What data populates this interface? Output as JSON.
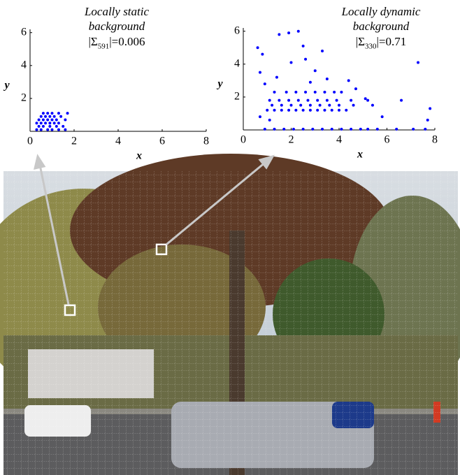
{
  "chart_data": [
    {
      "type": "scatter",
      "title": "Locally static background",
      "annotation": [
        "|Σ",
        "591",
        "|=0.006"
      ],
      "x_label": "x",
      "y_label": "y",
      "xlim": [
        0,
        8
      ],
      "ylim": [
        0,
        6.2
      ],
      "xticks": [
        0,
        2,
        4,
        6,
        8
      ],
      "yticks": [
        2,
        4,
        6
      ],
      "series": [
        {
          "color": "#0000ff",
          "x": [
            0.3,
            0.5,
            0.8,
            1.0,
            1.3,
            1.6,
            0.4,
            0.6,
            0.9,
            1.2,
            1.5,
            0.3,
            0.5,
            0.7,
            0.9,
            1.1,
            1.3,
            0.4,
            0.6,
            0.8,
            1.0,
            1.2,
            1.6,
            0.5,
            0.7,
            0.9,
            1.1,
            1.4,
            0.6,
            0.8,
            1.0,
            1.3,
            1.7
          ],
          "values": [
            0.1,
            0.1,
            0.1,
            0.1,
            0.1,
            0.1,
            0.3,
            0.3,
            0.3,
            0.3,
            0.3,
            0.5,
            0.5,
            0.5,
            0.5,
            0.5,
            0.5,
            0.7,
            0.7,
            0.7,
            0.7,
            0.7,
            0.7,
            0.9,
            0.9,
            0.9,
            0.9,
            0.9,
            1.1,
            1.1,
            1.1,
            1.1,
            1.1
          ]
        }
      ]
    },
    {
      "type": "scatter",
      "title": "Locally dynamic background",
      "annotation": [
        "|Σ",
        "330",
        "|=0.71"
      ],
      "x_label": "x",
      "y_label": "y",
      "xlim": [
        0,
        8
      ],
      "ylim": [
        0,
        6.2
      ],
      "xticks": [
        0,
        2,
        4,
        6,
        8
      ],
      "yticks": [
        2,
        4,
        6
      ],
      "series": [
        {
          "color": "#0000ff",
          "x": [
            0.9,
            1.3,
            1.7,
            2.1,
            2.5,
            2.9,
            3.3,
            3.7,
            4.1,
            4.5,
            4.9,
            5.2,
            5.6,
            6.4,
            7.1,
            7.6,
            1.0,
            1.3,
            1.6,
            1.9,
            2.2,
            2.5,
            2.8,
            3.1,
            3.4,
            3.7,
            4.0,
            4.3,
            1.2,
            1.6,
            2.0,
            2.4,
            2.8,
            3.2,
            3.6,
            4.0,
            4.6,
            1.1,
            1.5,
            1.9,
            2.3,
            2.7,
            3.1,
            3.5,
            3.9,
            4.5,
            5.2,
            1.3,
            1.8,
            2.2,
            2.6,
            3.0,
            3.4,
            3.8,
            4.1,
            0.6,
            0.8,
            0.7,
            0.9,
            1.5,
            1.9,
            2.3,
            2.0,
            2.6,
            3.0,
            1.4,
            2.8,
            3.5,
            4.4,
            4.7,
            5.1,
            5.4,
            6.6,
            7.3,
            7.8,
            7.7,
            5.8,
            0.7,
            1.1,
            3.3,
            2.5
          ],
          "values": [
            0.05,
            0.05,
            0.05,
            0.05,
            0.05,
            0.05,
            0.05,
            0.05,
            0.05,
            0.05,
            0.05,
            0.05,
            0.05,
            0.05,
            0.05,
            0.05,
            1.2,
            1.2,
            1.2,
            1.2,
            1.2,
            1.2,
            1.2,
            1.2,
            1.2,
            1.2,
            1.2,
            1.2,
            1.5,
            1.5,
            1.5,
            1.5,
            1.5,
            1.5,
            1.5,
            1.5,
            1.5,
            1.8,
            1.8,
            1.8,
            1.8,
            1.8,
            1.8,
            1.8,
            1.8,
            1.8,
            1.8,
            2.3,
            2.3,
            2.3,
            2.3,
            2.3,
            2.3,
            2.3,
            2.3,
            5.0,
            4.6,
            3.5,
            2.8,
            5.8,
            5.9,
            6.0,
            4.1,
            4.3,
            3.6,
            3.2,
            2.9,
            3.1,
            3.0,
            2.5,
            1.9,
            1.5,
            1.8,
            4.1,
            1.3,
            0.6,
            0.8,
            0.8,
            0.6,
            4.8,
            5.1
          ]
        }
      ]
    }
  ]
}
